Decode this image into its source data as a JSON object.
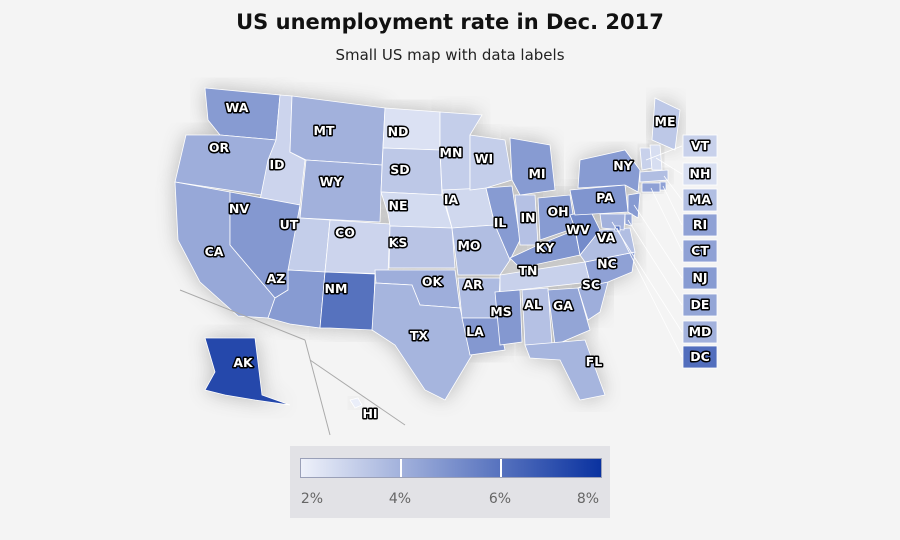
{
  "title": "US unemployment rate in Dec. 2017",
  "subtitle": "Small US map with data labels",
  "colors": {
    "low": "#eef1fa",
    "high": "#0a32a0",
    "background": "#f4f4f4"
  },
  "legend": {
    "min": 2,
    "max": 8,
    "labels": [
      {
        "value": 2,
        "text": "2%"
      },
      {
        "value": 4,
        "text": "4%"
      },
      {
        "value": 6,
        "text": "6%"
      },
      {
        "value": 8,
        "text": "8%"
      }
    ]
  },
  "chart_data": {
    "type": "choropleth",
    "value_unit": "%",
    "states": [
      {
        "code": "WA",
        "value": 4.7
      },
      {
        "code": "OR",
        "value": 4.1
      },
      {
        "code": "CA",
        "value": 4.3
      },
      {
        "code": "ID",
        "value": 2.9
      },
      {
        "code": "NV",
        "value": 4.8
      },
      {
        "code": "MT",
        "value": 4.0
      },
      {
        "code": "WY",
        "value": 4.0
      },
      {
        "code": "UT",
        "value": 3.1
      },
      {
        "code": "AZ",
        "value": 4.7
      },
      {
        "code": "CO",
        "value": 2.9
      },
      {
        "code": "NM",
        "value": 6.0
      },
      {
        "code": "ND",
        "value": 2.5
      },
      {
        "code": "SD",
        "value": 3.3
      },
      {
        "code": "NE",
        "value": 2.7
      },
      {
        "code": "KS",
        "value": 3.4
      },
      {
        "code": "OK",
        "value": 4.1
      },
      {
        "code": "TX",
        "value": 3.9
      },
      {
        "code": "MN",
        "value": 3.1
      },
      {
        "code": "IA",
        "value": 2.8
      },
      {
        "code": "MO",
        "value": 3.6
      },
      {
        "code": "AR",
        "value": 3.7
      },
      {
        "code": "LA",
        "value": 4.8
      },
      {
        "code": "WI",
        "value": 3.1
      },
      {
        "code": "IL",
        "value": 4.7
      },
      {
        "code": "MI",
        "value": 4.7
      },
      {
        "code": "IN",
        "value": 3.5
      },
      {
        "code": "OH",
        "value": 4.7
      },
      {
        "code": "KY",
        "value": 4.9
      },
      {
        "code": "TN",
        "value": 3.0
      },
      {
        "code": "MS",
        "value": 4.8
      },
      {
        "code": "AL",
        "value": 3.5
      },
      {
        "code": "GA",
        "value": 4.4
      },
      {
        "code": "FL",
        "value": 3.9
      },
      {
        "code": "SC",
        "value": 4.1
      },
      {
        "code": "NC",
        "value": 4.5
      },
      {
        "code": "VA",
        "value": 3.6
      },
      {
        "code": "WV",
        "value": 5.2
      },
      {
        "code": "PA",
        "value": 4.9
      },
      {
        "code": "NY",
        "value": 4.7
      },
      {
        "code": "ME",
        "value": 3.3
      },
      {
        "code": "VT",
        "value": 3.0
      },
      {
        "code": "NH",
        "value": 2.6
      },
      {
        "code": "MA",
        "value": 3.6
      },
      {
        "code": "RI",
        "value": 4.5
      },
      {
        "code": "CT",
        "value": 4.5
      },
      {
        "code": "NJ",
        "value": 4.7
      },
      {
        "code": "DE",
        "value": 4.4
      },
      {
        "code": "MD",
        "value": 4.0
      },
      {
        "code": "DC",
        "value": 6.1
      },
      {
        "code": "AK",
        "value": 7.3
      },
      {
        "code": "HI",
        "value": 2.1
      }
    ]
  }
}
